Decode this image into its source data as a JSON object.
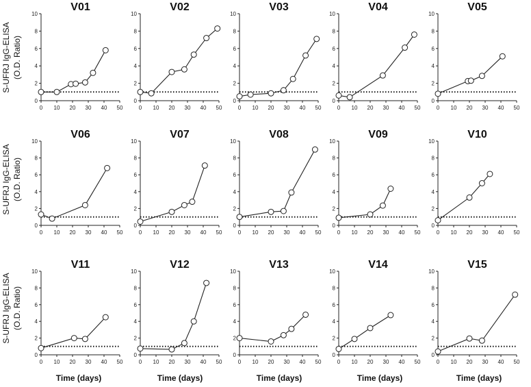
{
  "figure": {
    "ylabel_lines": [
      "S-UFRJ IgG-ELISA",
      "(O.D.  Ratio)"
    ],
    "xlabel": "Time  (days)"
  },
  "chart_data": [
    {
      "type": "line",
      "title": "V01",
      "x": [
        0,
        10,
        19,
        22,
        28,
        33,
        41
      ],
      "values": [
        1.0,
        1.0,
        1.9,
        1.95,
        2.1,
        3.2,
        5.8
      ],
      "xlim": [
        0,
        50
      ],
      "ylim": [
        0,
        10
      ],
      "xticks": [
        0,
        10,
        20,
        30,
        40,
        50
      ],
      "yticks": [
        0,
        2,
        4,
        6,
        8,
        10
      ],
      "threshold": 1.0
    },
    {
      "type": "line",
      "title": "V02",
      "x": [
        0,
        7,
        20,
        28,
        34,
        42,
        49
      ],
      "values": [
        1.0,
        0.85,
        3.3,
        3.6,
        5.3,
        7.2,
        8.3
      ],
      "xlim": [
        0,
        50
      ],
      "ylim": [
        0,
        10
      ],
      "xticks": [
        0,
        10,
        20,
        30,
        40,
        50
      ],
      "yticks": [
        0,
        2,
        4,
        6,
        8,
        10
      ],
      "threshold": 1.0
    },
    {
      "type": "line",
      "title": "V03",
      "x": [
        0,
        7,
        20,
        28,
        34,
        42,
        49
      ],
      "values": [
        0.5,
        0.7,
        0.85,
        1.2,
        2.5,
        5.2,
        7.1
      ],
      "xlim": [
        0,
        50
      ],
      "ylim": [
        0,
        10
      ],
      "xticks": [
        0,
        10,
        20,
        30,
        40,
        50
      ],
      "yticks": [
        0,
        2,
        4,
        6,
        8,
        10
      ],
      "threshold": 1.0
    },
    {
      "type": "line",
      "title": "V04",
      "x": [
        0,
        7,
        28,
        42,
        48
      ],
      "values": [
        0.6,
        0.4,
        2.9,
        6.1,
        7.6
      ],
      "xlim": [
        0,
        50
      ],
      "ylim": [
        0,
        10
      ],
      "xticks": [
        0,
        10,
        20,
        30,
        40,
        50
      ],
      "yticks": [
        0,
        2,
        4,
        6,
        8,
        10
      ],
      "threshold": 1.0
    },
    {
      "type": "line",
      "title": "V05",
      "x": [
        0,
        19,
        21,
        28,
        41
      ],
      "values": [
        0.8,
        2.25,
        2.3,
        2.85,
        5.1
      ],
      "xlim": [
        0,
        50
      ],
      "ylim": [
        0,
        10
      ],
      "xticks": [
        0,
        10,
        20,
        30,
        40,
        50
      ],
      "yticks": [
        0,
        2,
        4,
        6,
        8,
        10
      ],
      "threshold": 1.0
    },
    {
      "type": "line",
      "title": "V06",
      "x": [
        0,
        7,
        28,
        42
      ],
      "values": [
        1.3,
        0.8,
        2.4,
        6.8
      ],
      "xlim": [
        0,
        50
      ],
      "ylim": [
        0,
        10
      ],
      "xticks": [
        0,
        10,
        20,
        30,
        40,
        50
      ],
      "yticks": [
        0,
        2,
        4,
        6,
        8,
        10
      ],
      "threshold": 1.0
    },
    {
      "type": "line",
      "title": "V07",
      "x": [
        0,
        20,
        28,
        33,
        41
      ],
      "values": [
        0.45,
        1.6,
        2.4,
        2.8,
        7.1
      ],
      "xlim": [
        0,
        50
      ],
      "ylim": [
        0,
        10
      ],
      "xticks": [
        0,
        10,
        20,
        30,
        40,
        50
      ],
      "yticks": [
        0,
        2,
        4,
        6,
        8,
        10
      ],
      "threshold": 1.0
    },
    {
      "type": "line",
      "title": "V08",
      "x": [
        0,
        20,
        28,
        33,
        48
      ],
      "values": [
        1.0,
        1.6,
        1.7,
        3.9,
        9.0
      ],
      "xlim": [
        0,
        50
      ],
      "ylim": [
        0,
        10
      ],
      "xticks": [
        0,
        10,
        20,
        30,
        40,
        50
      ],
      "yticks": [
        0,
        2,
        4,
        6,
        8,
        10
      ],
      "threshold": 1.0
    },
    {
      "type": "line",
      "title": "V09",
      "x": [
        0,
        20,
        28,
        33
      ],
      "values": [
        0.9,
        1.3,
        2.35,
        4.35
      ],
      "xlim": [
        0,
        50
      ],
      "ylim": [
        0,
        10
      ],
      "xticks": [
        0,
        10,
        20,
        30,
        40,
        50
      ],
      "yticks": [
        0,
        2,
        4,
        6,
        8,
        10
      ],
      "threshold": 1.0
    },
    {
      "type": "line",
      "title": "V10",
      "x": [
        0,
        20,
        28,
        33
      ],
      "values": [
        0.6,
        3.3,
        5.0,
        6.1
      ],
      "xlim": [
        0,
        50
      ],
      "ylim": [
        0,
        10
      ],
      "xticks": [
        0,
        10,
        20,
        30,
        40,
        50
      ],
      "yticks": [
        0,
        2,
        4,
        6,
        8,
        10
      ],
      "threshold": 1.0
    },
    {
      "type": "line",
      "title": "V11",
      "x": [
        0,
        21,
        28,
        41
      ],
      "values": [
        0.8,
        2.0,
        1.9,
        4.5
      ],
      "xlim": [
        0,
        50
      ],
      "ylim": [
        0,
        10
      ],
      "xticks": [
        0,
        10,
        20,
        30,
        40,
        50
      ],
      "yticks": [
        0,
        2,
        4,
        6,
        8,
        10
      ],
      "threshold": 1.0
    },
    {
      "type": "line",
      "title": "V12",
      "x": [
        0,
        20,
        28,
        34,
        42
      ],
      "values": [
        0.75,
        0.65,
        1.4,
        4.0,
        8.6
      ],
      "xlim": [
        0,
        50
      ],
      "ylim": [
        0,
        10
      ],
      "xticks": [
        0,
        10,
        20,
        30,
        40,
        50
      ],
      "yticks": [
        0,
        2,
        4,
        6,
        8,
        10
      ],
      "threshold": 1.0
    },
    {
      "type": "line",
      "title": "V13",
      "x": [
        0,
        20,
        28,
        33,
        42
      ],
      "values": [
        2.0,
        1.6,
        2.35,
        3.1,
        4.8
      ],
      "xlim": [
        0,
        50
      ],
      "ylim": [
        0,
        10
      ],
      "xticks": [
        0,
        10,
        20,
        30,
        40,
        50
      ],
      "yticks": [
        0,
        2,
        4,
        6,
        8,
        10
      ],
      "threshold": 1.0
    },
    {
      "type": "line",
      "title": "V14",
      "x": [
        0,
        10,
        20,
        33
      ],
      "values": [
        0.7,
        1.9,
        3.2,
        4.75
      ],
      "xlim": [
        0,
        50
      ],
      "ylim": [
        0,
        10
      ],
      "xticks": [
        0,
        10,
        20,
        30,
        40,
        50
      ],
      "yticks": [
        0,
        2,
        4,
        6,
        8,
        10
      ],
      "threshold": 1.0
    },
    {
      "type": "line",
      "title": "V15",
      "x": [
        0,
        20,
        28,
        49
      ],
      "values": [
        0.4,
        1.95,
        1.7,
        7.2
      ],
      "xlim": [
        0,
        50
      ],
      "ylim": [
        0,
        10
      ],
      "xticks": [
        0,
        10,
        20,
        30,
        40,
        50
      ],
      "yticks": [
        0,
        2,
        4,
        6,
        8,
        10
      ],
      "threshold": 1.0
    }
  ]
}
